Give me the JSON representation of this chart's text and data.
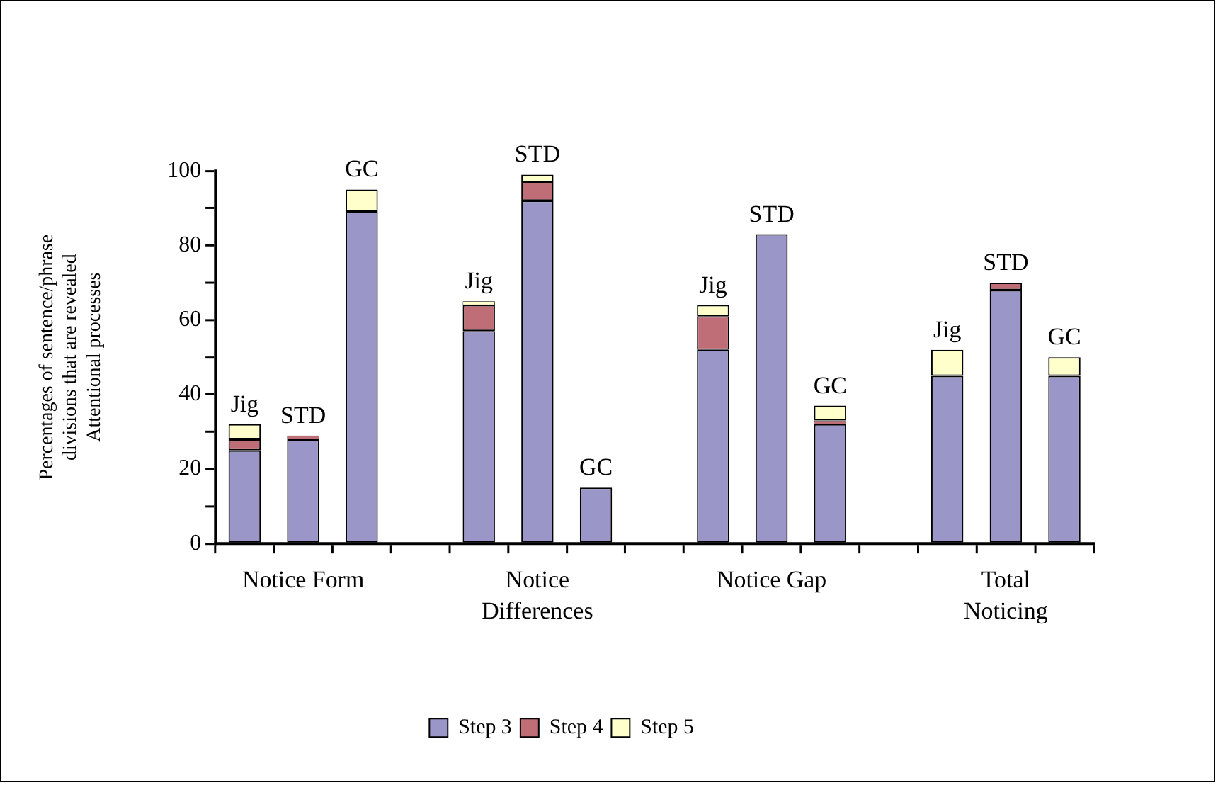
{
  "chart_data": {
    "type": "bar",
    "stacked": true,
    "ylabel": "Percentages of sentence/phrase divisions that are revealed Attentional processes",
    "categories": [
      "Jig",
      "STD",
      "GC",
      null,
      "Jig",
      "STD",
      "GC",
      null,
      "Jig",
      "STD",
      "GC",
      null,
      "Jig",
      "STD",
      "GC"
    ],
    "series": [
      {
        "name": "Step 3",
        "color": "#9a96c8",
        "values": [
          25,
          28,
          89,
          null,
          57,
          92,
          15,
          null,
          52,
          83,
          32,
          null,
          45,
          68,
          45
        ]
      },
      {
        "name": "Step 4",
        "color": "#bf6e78",
        "values": [
          3,
          1,
          null,
          null,
          7,
          5,
          null,
          null,
          9,
          null,
          1,
          null,
          null,
          2,
          null
        ]
      },
      {
        "name": "Step 5",
        "color": "#ffffcc",
        "values": [
          4,
          null,
          6,
          null,
          1,
          2,
          null,
          null,
          3,
          null,
          4,
          null,
          7,
          null,
          5
        ]
      }
    ],
    "ylim": [
      0,
      100
    ],
    "yticks": [
      0,
      {
        "value": 10,
        "label": null
      },
      20,
      {
        "value": 30,
        "label": null
      },
      40,
      {
        "value": 50,
        "label": null
      },
      60,
      {
        "value": 70,
        "label": null
      },
      80,
      {
        "value": 90,
        "label": null
      },
      100
    ],
    "annotations": [
      "Notice Form",
      "Notice Differences",
      "Notice Gap",
      "Total Noticing"
    ],
    "grid": false,
    "legend": "bottom"
  }
}
